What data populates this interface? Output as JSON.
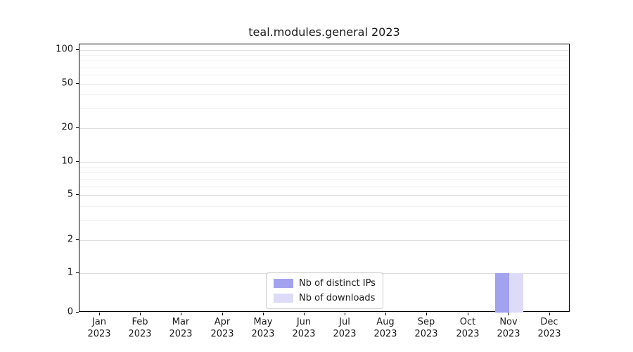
{
  "chart_data": {
    "type": "bar",
    "title": "teal.modules.general 2023",
    "year": "2023",
    "categories": [
      "Jan",
      "Feb",
      "Mar",
      "Apr",
      "May",
      "Jun",
      "Jul",
      "Aug",
      "Sep",
      "Oct",
      "Nov",
      "Dec"
    ],
    "series": [
      {
        "name": "Nb of distinct IPs",
        "color": "#a2a2ef",
        "values": [
          0,
          0,
          0,
          0,
          0,
          0,
          0,
          0,
          0,
          0,
          1,
          0
        ]
      },
      {
        "name": "Nb of downloads",
        "color": "#dcdcf8",
        "values": [
          0,
          0,
          0,
          0,
          0,
          0,
          0,
          0,
          0,
          0,
          1,
          0
        ]
      }
    ],
    "yscale": "symlog",
    "yticks": [
      0,
      1,
      2,
      5,
      10,
      20,
      50,
      100
    ],
    "yminor_gridlines": [
      2,
      3,
      4,
      5,
      6,
      7,
      8,
      9,
      20,
      30,
      40,
      50,
      60,
      70,
      80,
      90,
      100
    ],
    "ylim": [
      0,
      112
    ],
    "grid": true,
    "legend_position": "bottom-center"
  }
}
